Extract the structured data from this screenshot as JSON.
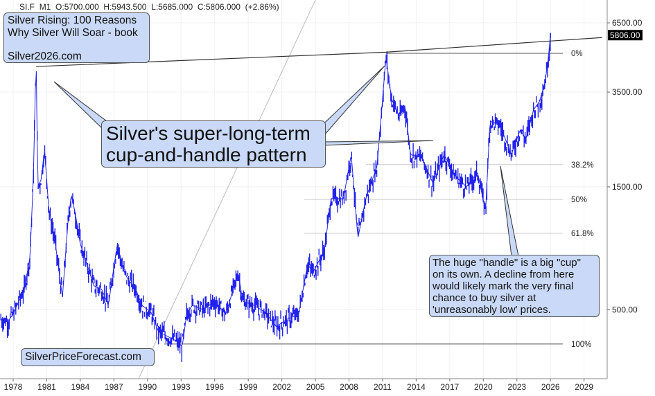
{
  "header": {
    "symbol": "SI.F",
    "timeframe": "M1",
    "open": "O:5700.000",
    "high": "H:5943.500",
    "low": "L:5685.000",
    "close": "C:5806.000",
    "change": "(+2.86%)"
  },
  "annotations": {
    "book_line1": "Silver Rising: 100 Reasons",
    "book_line2": "Why Silver Will Soar - book",
    "book_site": "Silver2026.com",
    "pattern_line1": "Silver's super-long-term",
    "pattern_line2": "cup-and-handle pattern",
    "handle_note": [
      "The huge \"handle\" is a big \"cup\"",
      "on its own. A decline from here",
      "would likely mark the very final",
      "chance to buy silver at",
      "'unreasonably low' prices."
    ],
    "site": "SilverPriceForecast.com"
  },
  "colors": {
    "price": "#2222ee",
    "box": "#c9d9f7"
  },
  "chart_data": {
    "type": "line",
    "scale": "log",
    "ylim": [
      300,
      6800
    ],
    "xlim": [
      1976.9,
      2030.8
    ],
    "x_ticks": [
      "1978",
      "1981",
      "1984",
      "1987",
      "1990",
      "1993",
      "1996",
      "1999",
      "2002",
      "2005",
      "2008",
      "2011",
      "2014",
      "2017",
      "2020",
      "2023",
      "2026",
      "2029"
    ],
    "y_ticks": [
      {
        "value": 6500,
        "label": "6500.00"
      },
      {
        "value": 3500,
        "label": "3500.00"
      },
      {
        "value": 1500,
        "label": "1500.00"
      },
      {
        "value": 500,
        "label": "500.00"
      }
    ],
    "last_price": {
      "value": 5806,
      "label": "5806.00"
    },
    "fib_levels": [
      {
        "label": "0%",
        "value": 4950
      },
      {
        "label": "38.2%",
        "value": 1830
      },
      {
        "label": "50%",
        "value": 1340
      },
      {
        "label": "61.8%",
        "value": 990
      },
      {
        "label": "100%",
        "value": 368
      }
    ],
    "trendline": [
      [
        1980.05,
        4400
      ],
      [
        2011.3,
        5000
      ],
      [
        2030.6,
        5700
      ]
    ],
    "series": [
      {
        "name": "SI.F monthly",
        "points": [
          [
            1976.9,
            460
          ],
          [
            1977.5,
            450
          ],
          [
            1978.0,
            480
          ],
          [
            1978.5,
            540
          ],
          [
            1979.0,
            600
          ],
          [
            1979.5,
            800
          ],
          [
            1979.8,
            1600
          ],
          [
            1980.05,
            4800
          ],
          [
            1980.2,
            1500
          ],
          [
            1980.5,
            1600
          ],
          [
            1980.8,
            2100
          ],
          [
            1981.2,
            1200
          ],
          [
            1981.7,
            950
          ],
          [
            1982.4,
            560
          ],
          [
            1982.9,
            1100
          ],
          [
            1983.2,
            1400
          ],
          [
            1983.6,
            1150
          ],
          [
            1984.0,
            900
          ],
          [
            1984.6,
            750
          ],
          [
            1985.2,
            620
          ],
          [
            1985.9,
            600
          ],
          [
            1986.5,
            520
          ],
          [
            1987.3,
            900
          ],
          [
            1987.8,
            720
          ],
          [
            1988.3,
            650
          ],
          [
            1988.9,
            610
          ],
          [
            1989.5,
            520
          ],
          [
            1990.3,
            490
          ],
          [
            1991.0,
            410
          ],
          [
            1991.5,
            400
          ],
          [
            1992.5,
            380
          ],
          [
            1993.1,
            360
          ],
          [
            1993.5,
            480
          ],
          [
            1994.0,
            520
          ],
          [
            1995.0,
            500
          ],
          [
            1996.0,
            540
          ],
          [
            1997.0,
            480
          ],
          [
            1998.1,
            700
          ],
          [
            1998.5,
            540
          ],
          [
            1999.5,
            520
          ],
          [
            2000.5,
            490
          ],
          [
            2001.5,
            430
          ],
          [
            2002.5,
            460
          ],
          [
            2003.5,
            480
          ],
          [
            2004.3,
            750
          ],
          [
            2004.8,
            700
          ],
          [
            2005.8,
            850
          ],
          [
            2006.4,
            1350
          ],
          [
            2007.5,
            1350
          ],
          [
            2008.2,
            2000
          ],
          [
            2008.8,
            950
          ],
          [
            2009.5,
            1350
          ],
          [
            2010.5,
            1800
          ],
          [
            2010.9,
            2900
          ],
          [
            2011.3,
            4800
          ],
          [
            2011.8,
            3300
          ],
          [
            2012.5,
            2800
          ],
          [
            2013.0,
            3100
          ],
          [
            2013.5,
            2000
          ],
          [
            2014.5,
            1950
          ],
          [
            2015.5,
            1550
          ],
          [
            2016.5,
            2000
          ],
          [
            2017.5,
            1650
          ],
          [
            2018.5,
            1500
          ],
          [
            2019.5,
            1700
          ],
          [
            2020.2,
            1200
          ],
          [
            2020.6,
            2700
          ],
          [
            2021.5,
            2600
          ],
          [
            2022.5,
            2000
          ],
          [
            2023.3,
            2500
          ],
          [
            2023.8,
            2300
          ],
          [
            2024.5,
            3000
          ],
          [
            2025.0,
            3200
          ],
          [
            2025.5,
            3800
          ],
          [
            2025.8,
            4700
          ],
          [
            2026.0,
            5806
          ]
        ]
      }
    ]
  }
}
